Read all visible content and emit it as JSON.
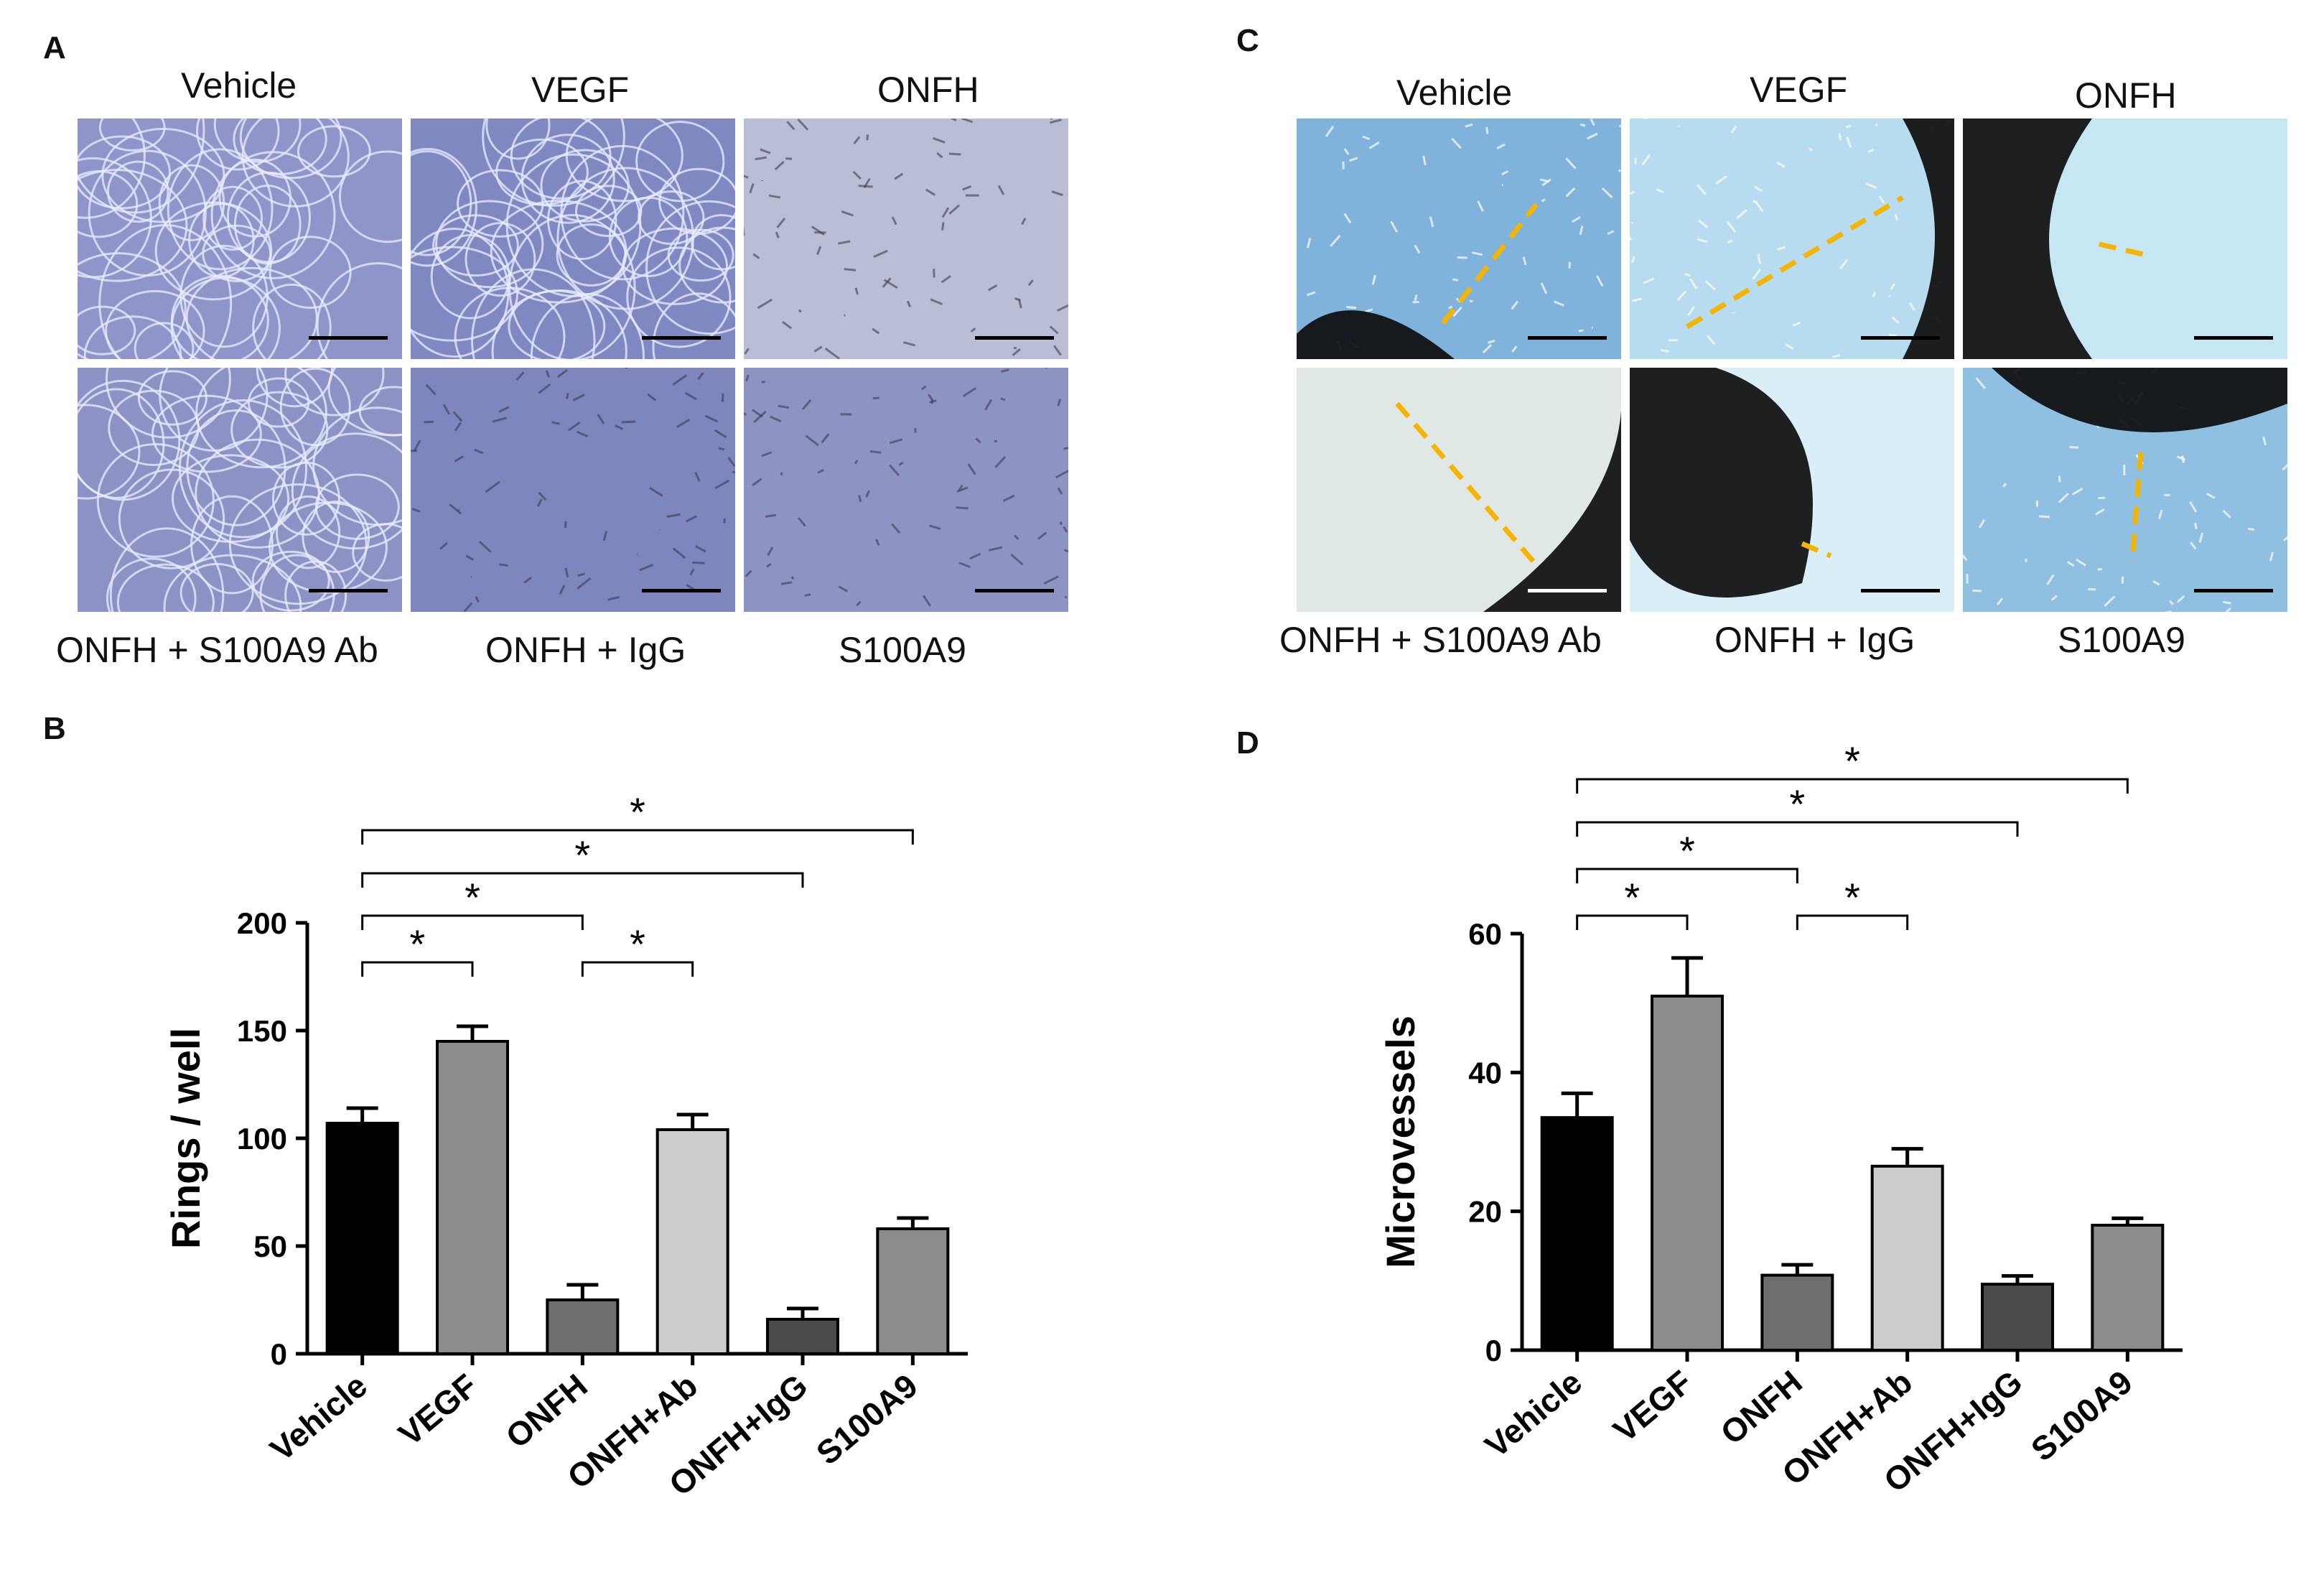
{
  "panels": {
    "A": {
      "letter": "A",
      "top_labels": [
        "Vehicle",
        "VEGF",
        "ONFH"
      ],
      "bottom_labels": [
        "ONFH + S100A9 Ab",
        "ONFH + IgG",
        "S100A9"
      ]
    },
    "C": {
      "letter": "C",
      "top_labels": [
        "Vehicle",
        "VEGF",
        "ONFH"
      ],
      "bottom_labels": [
        "ONFH + S100A9 Ab",
        "ONFH + IgG",
        "S100A9"
      ]
    },
    "B": {
      "letter": "B"
    },
    "D": {
      "letter": "D"
    }
  },
  "colors": {
    "tube_formation_bg": "#8f95c8",
    "aortic_ring_bg": "#a9cfe8",
    "dashed_line": "#f5b400",
    "bar_vehicle": "#000000",
    "bar_vegf": "#8c8c8c",
    "bar_onfh": "#6e6e6e",
    "bar_onfh_ab": "#cccccc",
    "bar_onfh_igg": "#4a4a4a",
    "bar_s100a9": "#8c8c8c"
  },
  "chart_data": [
    {
      "panel": "B",
      "type": "bar",
      "categories": [
        "Vehicle",
        "VEGF",
        "ONFH",
        "ONFH+Ab",
        "ONFH+IgG",
        "S100A9"
      ],
      "values": [
        107,
        145,
        25,
        104,
        16,
        58
      ],
      "errors": [
        7,
        7,
        7,
        7,
        5,
        5
      ],
      "ylabel": "Rings / well",
      "ylim": [
        0,
        200
      ],
      "yticks": [
        0,
        50,
        100,
        150,
        200
      ],
      "significance": [
        {
          "from": "Vehicle",
          "to": "VEGF",
          "label": "*"
        },
        {
          "from": "ONFH",
          "to": "ONFH+Ab",
          "label": "*"
        },
        {
          "from": "Vehicle",
          "to": "ONFH",
          "label": "*"
        },
        {
          "from": "Vehicle",
          "to": "ONFH+IgG",
          "label": "*"
        },
        {
          "from": "Vehicle",
          "to": "S100A9",
          "label": "*"
        }
      ]
    },
    {
      "panel": "D",
      "type": "bar",
      "categories": [
        "Vehicle",
        "VEGF",
        "ONFH",
        "ONFH+Ab",
        "ONFH+IgG",
        "S100A9"
      ],
      "values": [
        33.5,
        51,
        10.8,
        26.5,
        9.5,
        18
      ],
      "errors": [
        3.5,
        5.5,
        1.5,
        2.5,
        1.2,
        1
      ],
      "ylabel": "Microvessels",
      "ylim": [
        0,
        60
      ],
      "yticks": [
        0,
        20,
        40,
        60
      ],
      "significance": [
        {
          "from": "Vehicle",
          "to": "VEGF",
          "label": "*"
        },
        {
          "from": "ONFH",
          "to": "ONFH+Ab",
          "label": "*"
        },
        {
          "from": "Vehicle",
          "to": "ONFH",
          "label": "*"
        },
        {
          "from": "Vehicle",
          "to": "ONFH+IgG",
          "label": "*"
        },
        {
          "from": "Vehicle",
          "to": "S100A9",
          "label": "*"
        }
      ]
    }
  ]
}
